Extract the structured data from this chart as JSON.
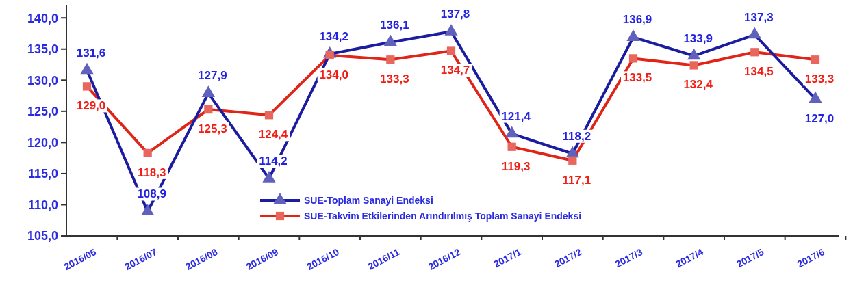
{
  "chart_data": {
    "type": "line",
    "categories": [
      "2016/06",
      "2016/07",
      "2016/08",
      "2016/09",
      "2016/10",
      "2016/11",
      "2016/12",
      "2017/1",
      "2017/2",
      "2017/3",
      "2017/4",
      "2017/5",
      "2017/6"
    ],
    "series": [
      {
        "name": "SUE-Toplam Sanayi Endeksi",
        "color": "#1c1ca0",
        "marker": "triangle",
        "values": [
          131.6,
          108.9,
          127.9,
          114.2,
          134.2,
          136.1,
          137.8,
          121.4,
          118.2,
          136.9,
          133.9,
          137.3,
          127.0
        ],
        "value_labels": [
          "131,6",
          "108,9",
          "127,9",
          "114,2",
          "134,2",
          "136,1",
          "137,8",
          "121,4",
          "118,2",
          "136,9",
          "133,9",
          "137,3",
          "127,0"
        ]
      },
      {
        "name": "SUE-Takvim Etkilerinden Arındırılmış Toplam Sanayi Endeksi",
        "color": "#e02418",
        "marker": "square",
        "values": [
          129.0,
          118.3,
          125.3,
          124.4,
          134.0,
          133.3,
          134.7,
          119.3,
          117.1,
          133.5,
          132.4,
          134.5,
          133.3
        ],
        "value_labels": [
          "129,0",
          "118,3",
          "125,3",
          "124,4",
          "134,0",
          "133,3",
          "134,7",
          "119,3",
          "117,1",
          "133,5",
          "132,4",
          "134,5",
          "133,3"
        ]
      }
    ],
    "ylim": [
      105,
      142
    ],
    "yticks": [
      {
        "value": 105,
        "label": "105,0"
      },
      {
        "value": 110,
        "label": "110,0"
      },
      {
        "value": 115,
        "label": "115,0"
      },
      {
        "value": 120,
        "label": "120,0"
      },
      {
        "value": 125,
        "label": "125,0"
      },
      {
        "value": 130,
        "label": "130,0"
      },
      {
        "value": 135,
        "label": "135,0"
      },
      {
        "value": 140,
        "label": "140,0"
      }
    ],
    "legend": "bottom",
    "grid": false,
    "line_style": "solid"
  }
}
